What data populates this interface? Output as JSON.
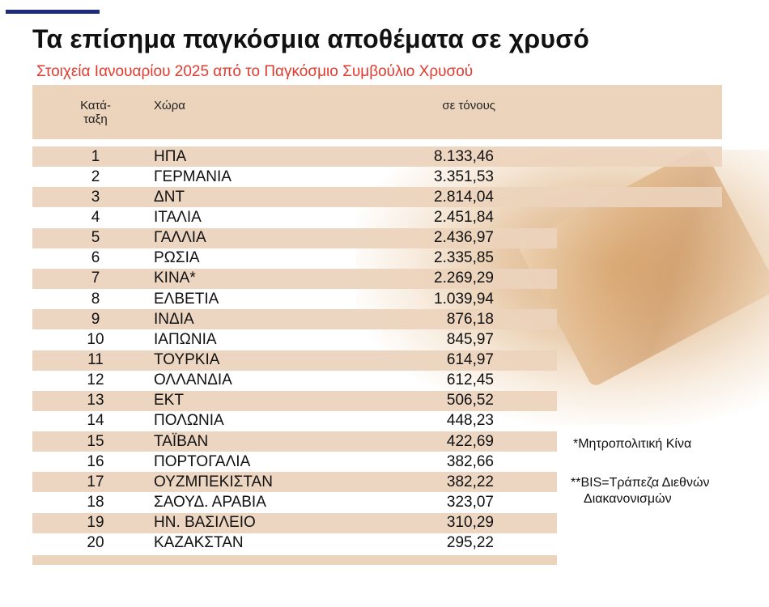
{
  "colors": {
    "accent_bar": "#1d2b7a",
    "subtitle": "#e23a2e",
    "row_shade": "#ecd3bc"
  },
  "title": "Τα επίσημα παγκόσμια αποθέματα σε χρυσό",
  "subtitle": "Στοιχεία Ιανουαρίου 2025 από το Παγκόσμιο Συμβούλιο Χρυσού",
  "header": {
    "rank_line1": "Κατά-",
    "rank_line2": "ταξη",
    "country": "Χώρα",
    "value": "σε τόνους"
  },
  "chart_data": {
    "type": "table",
    "columns": [
      "Κατάταξη",
      "Χώρα",
      "σε τόνους"
    ],
    "rows": [
      {
        "rank": "1",
        "country": "ΗΠΑ",
        "value": "8.133,46"
      },
      {
        "rank": "2",
        "country": "ΓΕΡΜΑΝΙΑ",
        "value": "3.351,53"
      },
      {
        "rank": "3",
        "country": "ΔΝΤ",
        "value": "2.814,04"
      },
      {
        "rank": "4",
        "country": "ΙΤΑΛΙΑ",
        "value": "2.451,84"
      },
      {
        "rank": "5",
        "country": "ΓΑΛΛΙΑ",
        "value": "2.436,97"
      },
      {
        "rank": "6",
        "country": "ΡΩΣΙΑ",
        "value": "2.335,85"
      },
      {
        "rank": "7",
        "country": "ΚΙΝΑ*",
        "value": "2.269,29"
      },
      {
        "rank": "8",
        "country": "ΕΛΒΕΤΙΑ",
        "value": "1.039,94"
      },
      {
        "rank": "9",
        "country": "ΙΝΔΙΑ",
        "value": "876,18"
      },
      {
        "rank": "10",
        "country": "ΙΑΠΩΝΙΑ",
        "value": "845,97"
      },
      {
        "rank": "11",
        "country": "ΤΟΥΡΚΙΑ",
        "value": "614,97"
      },
      {
        "rank": "12",
        "country": "ΟΛΛΑΝΔΙΑ",
        "value": "612,45"
      },
      {
        "rank": "13",
        "country": "ΕΚΤ",
        "value": "506,52"
      },
      {
        "rank": "14",
        "country": "ΠΟΛΩΝΙΑ",
        "value": "448,23"
      },
      {
        "rank": "15",
        "country": "ΤΑΪΒΑΝ",
        "value": "422,69"
      },
      {
        "rank": "16",
        "country": "ΠΟΡΤΟΓΑΛΙΑ",
        "value": "382,66"
      },
      {
        "rank": "17",
        "country": "ΟΥΖΜΠΕΚΙΣΤΑΝ",
        "value": "382,22"
      },
      {
        "rank": "18",
        "country": "ΣΑΟΥΔ. ΑΡΑΒΙΑ",
        "value": "323,07"
      },
      {
        "rank": "19",
        "country": "ΗΝ. ΒΑΣΙΛΕΙΟ",
        "value": "310,29"
      },
      {
        "rank": "20",
        "country": "ΚΑΖΑΚΣΤΑΝ",
        "value": "295,22"
      }
    ]
  },
  "notes": {
    "china": "*Μητροπολιτική Κίνα",
    "bis_line1": "**BIS=Τράπεζα Διεθνών",
    "bis_line2": "Διακανονισμών"
  }
}
